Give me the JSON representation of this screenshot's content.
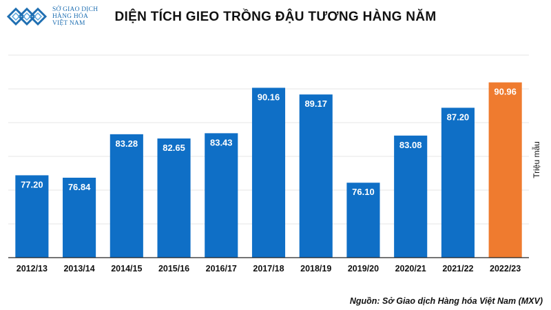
{
  "logo": {
    "icon": "mxv-logo-icon",
    "lines": [
      "SỞ GIAO DỊCH",
      "HÀNG HÓA",
      "VIỆT NAM"
    ],
    "color": "#1f6fb2"
  },
  "colors": {
    "bar": "#0f6fc6",
    "highlight": "#ef7b2f",
    "grid": "#e6e6e6",
    "axis": "#222222"
  },
  "chart_data": {
    "type": "bar",
    "title": "DIỆN TÍCH GIEO TRỒNG ĐẬU TƯƠNG HÀNG NĂM",
    "xlabel": "",
    "ylabel": "Triệu mẫu",
    "categories": [
      "2012/13",
      "2013/14",
      "2014/15",
      "2015/16",
      "2016/17",
      "2017/18",
      "2018/19",
      "2019/20",
      "2020/21",
      "2021/22",
      "2022/23"
    ],
    "values": [
      77.2,
      76.84,
      83.28,
      82.65,
      83.43,
      90.16,
      89.17,
      76.1,
      83.08,
      87.2,
      90.96
    ],
    "labels": [
      "77.20",
      "76.84",
      "83.28",
      "82.65",
      "83.43",
      "90.16",
      "89.17",
      "76.10",
      "83.08",
      "87.20",
      "90.96"
    ],
    "highlight_index": 10,
    "ylim": [
      65,
      95
    ],
    "grid": true,
    "y_ticks_shown": false,
    "legend": "none"
  },
  "source": "Nguồn: Sở Giao dịch Hàng hóa Việt Nam (MXV)"
}
